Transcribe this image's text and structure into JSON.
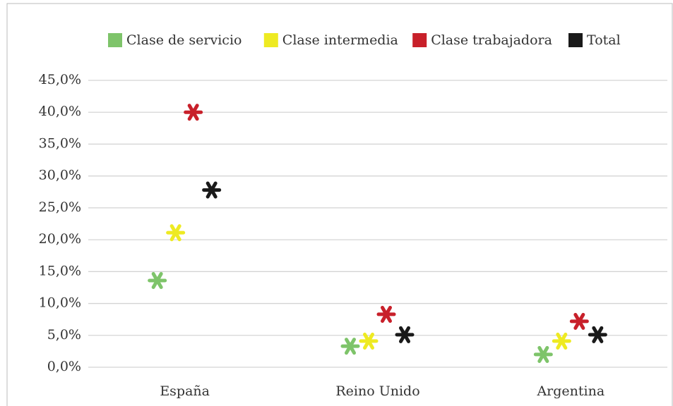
{
  "chart_data": {
    "type": "scatter",
    "categories": [
      "España",
      "Reino Unido",
      "Argentina"
    ],
    "series": [
      {
        "name": "Clase de servicio",
        "color": "#7ec46a",
        "values": [
          13.6,
          3.3,
          2.0
        ]
      },
      {
        "name": "Clase intermedia",
        "color": "#eeea22",
        "values": [
          21.1,
          4.1,
          4.1
        ]
      },
      {
        "name": "Clase trabajadora",
        "color": "#c8202a",
        "values": [
          40.0,
          8.3,
          7.2
        ]
      },
      {
        "name": "Total",
        "color": "#1a1a1a",
        "values": [
          27.8,
          5.1,
          5.1
        ]
      }
    ],
    "ylim": [
      0,
      45
    ],
    "yticks": [
      {
        "value": 0,
        "label": "0,0%"
      },
      {
        "value": 5,
        "label": "5,0%"
      },
      {
        "value": 10,
        "label": "10,0%"
      },
      {
        "value": 15,
        "label": "15,0%"
      },
      {
        "value": 20,
        "label": "20,0%"
      },
      {
        "value": 25,
        "label": "25,0%"
      },
      {
        "value": 30,
        "label": "30,0%"
      },
      {
        "value": 35,
        "label": "35,0%"
      },
      {
        "value": 40,
        "label": "40,0%"
      },
      {
        "value": 45,
        "label": "45,0%"
      }
    ],
    "grid": true,
    "legend": "top"
  }
}
